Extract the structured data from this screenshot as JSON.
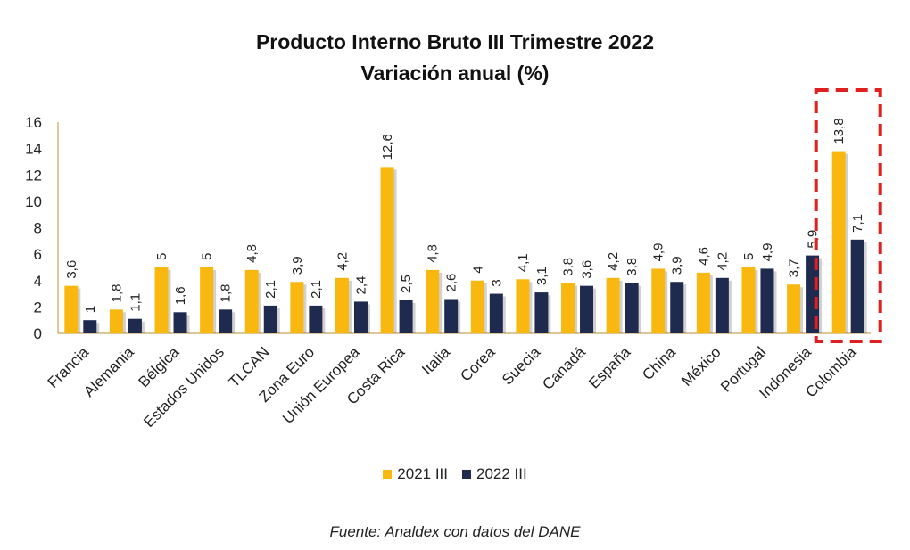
{
  "chart_data": {
    "type": "bar",
    "title": "Producto Interno Bruto III Trimestre 2022",
    "subtitle": "Variación anual (%)",
    "categories": [
      "Francia",
      "Alemania",
      "Bélgica",
      "Estados Unidos",
      "TLCAN",
      "Zona Euro",
      "Unión Europea",
      "Costa Rica",
      "Italia",
      "Corea",
      "Suecia",
      "Canadá",
      "España",
      "China",
      "México",
      "Portugal",
      "Indonesia",
      "Colombia"
    ],
    "series": [
      {
        "name": "2021 III",
        "color": "#F9B80F",
        "values": [
          3.6,
          1.8,
          5,
          5,
          4.8,
          3.9,
          4.2,
          12.6,
          4.8,
          4,
          4.1,
          3.8,
          4.2,
          4.9,
          4.6,
          5,
          3.7,
          13.8
        ],
        "labels": [
          "3,6",
          "1,8",
          "5",
          "5",
          "4,8",
          "3,9",
          "4,2",
          "12,6",
          "4,8",
          "4",
          "4,1",
          "3,8",
          "4,2",
          "4,9",
          "4,6",
          "5",
          "3,7",
          "13,8"
        ]
      },
      {
        "name": "2022 III",
        "color": "#1F2A4F",
        "values": [
          1,
          1.1,
          1.6,
          1.8,
          2.1,
          2.1,
          2.4,
          2.5,
          2.6,
          3,
          3.1,
          3.6,
          3.8,
          3.9,
          4.2,
          4.9,
          5.9,
          7.1
        ],
        "labels": [
          "1",
          "1,1",
          "1,6",
          "1,8",
          "2,1",
          "2,1",
          "2,4",
          "2,5",
          "2,6",
          "3",
          "3,1",
          "3,6",
          "3,8",
          "3,9",
          "4,2",
          "4,9",
          "5,9",
          "7,1"
        ]
      }
    ],
    "ylim": [
      0,
      16
    ],
    "yticks": [
      0,
      2,
      4,
      6,
      8,
      10,
      12,
      14,
      16
    ],
    "highlight": "Colombia",
    "highlight_color": "#E02020",
    "legend_position": "bottom",
    "source": "Fuente: Analdex con datos del DANE"
  }
}
